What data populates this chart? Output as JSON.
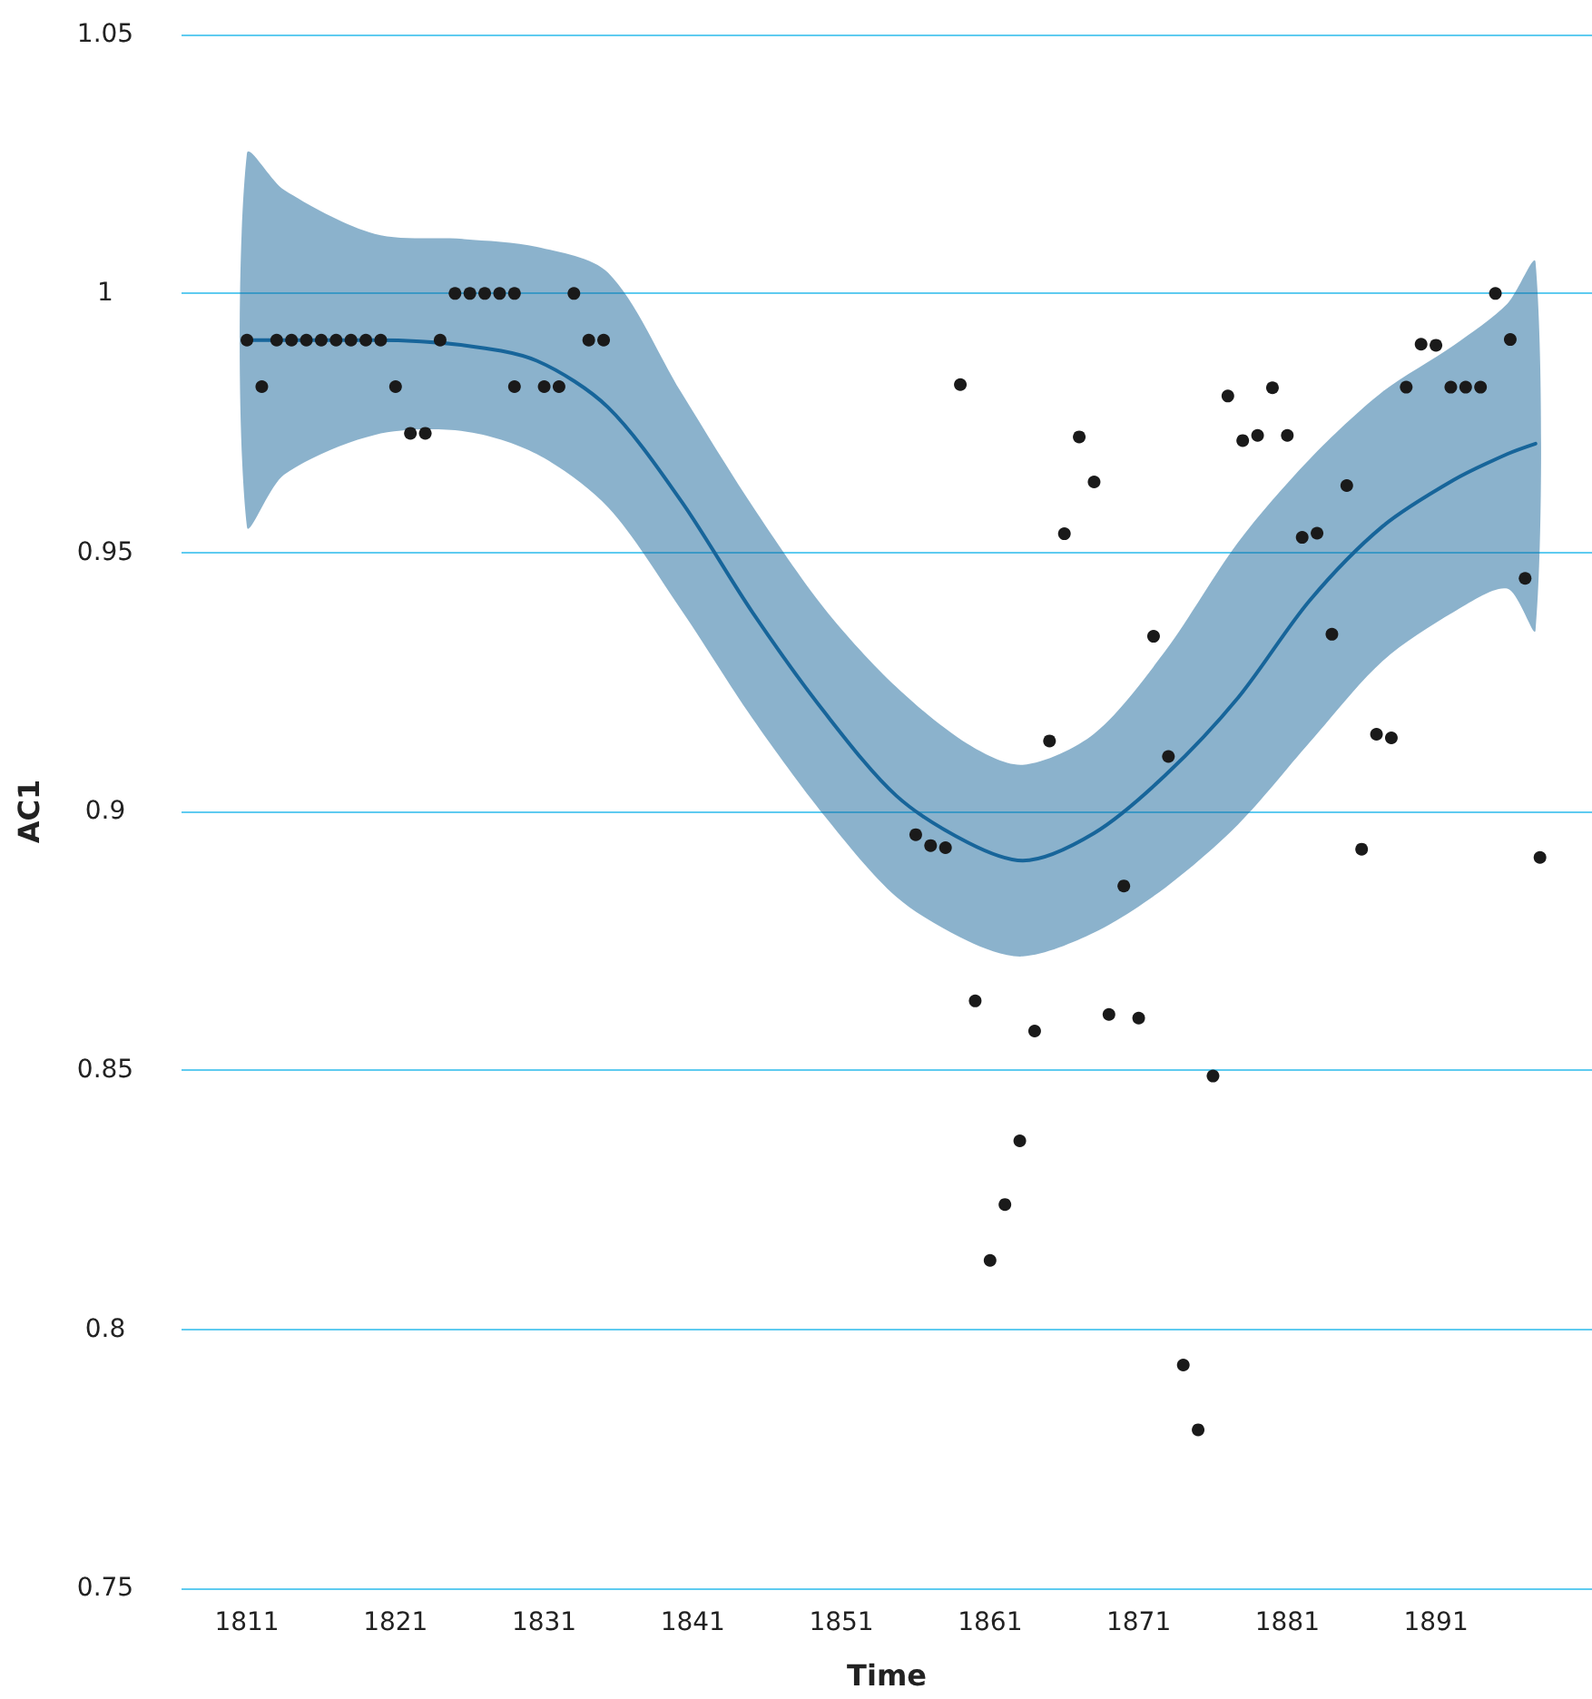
{
  "chart_data": {
    "type": "scatter",
    "xlabel": "Time",
    "ylabel": "AC1",
    "xlim": [
      1806.6,
      1901.5
    ],
    "xticks": [
      1811,
      1821,
      1831,
      1841,
      1851,
      1861,
      1871,
      1881,
      1891
    ],
    "ylim": [
      0.75,
      1.05
    ],
    "yticks": [
      0.75,
      0.8,
      0.85,
      0.9,
      0.95,
      1,
      1.05
    ],
    "grid": "y",
    "series": [
      {
        "type": "line",
        "color": "#17659a",
        "marker": "none",
        "line_style": "solid",
        "x": [
          1811,
          1813.5,
          1819.6,
          1825.6,
          1830.5,
          1835.3,
          1840.2,
          1845,
          1849.9,
          1854.7,
          1859.5,
          1863.2,
          1868,
          1872.8,
          1877.7,
          1882.5,
          1887.4,
          1892.2,
          1895.8,
          1897.7
        ],
        "values": [
          0.991,
          0.991,
          0.991,
          0.99,
          0.987,
          0.978,
          0.96,
          0.9385,
          0.919,
          0.903,
          0.894,
          0.8905,
          0.8958,
          0.907,
          0.922,
          0.9407,
          0.955,
          0.964,
          0.969,
          0.971
        ],
        "lower": [
          0.955,
          0.965,
          0.9727,
          0.9734,
          0.969,
          0.9587,
          0.939,
          0.918,
          0.899,
          0.8835,
          0.875,
          0.872,
          0.8766,
          0.8853,
          0.8975,
          0.9133,
          0.929,
          0.9385,
          0.943,
          0.935
        ],
        "upper": [
          1.027,
          1.02,
          1.0115,
          1.0105,
          1.009,
          1.004,
          0.981,
          0.959,
          0.939,
          0.924,
          0.913,
          0.909,
          0.915,
          0.931,
          0.952,
          0.968,
          0.981,
          0.99,
          0.998,
          1.006
        ]
      },
      {
        "color": "#1a1a1a",
        "marker": "circle",
        "x": [
          1811,
          1812,
          1813,
          1814,
          1815,
          1816,
          1817,
          1818,
          1819,
          1820,
          1821,
          1822,
          1823,
          1824,
          1825,
          1826,
          1827,
          1828,
          1829,
          1829,
          1831,
          1832,
          1833,
          1834,
          1835,
          1856,
          1857,
          1858,
          1859,
          1860,
          1861,
          1862,
          1863,
          1864,
          1865,
          1866,
          1867,
          1868,
          1869,
          1870,
          1871,
          1872,
          1873,
          1874,
          1875,
          1876,
          1877,
          1878,
          1879,
          1880,
          1881,
          1882,
          1883,
          1884,
          1885,
          1886,
          1887,
          1888,
          1889,
          1890,
          1891,
          1892,
          1893,
          1894,
          1895,
          1896,
          1897,
          1898
        ],
        "values": [
          0.991,
          0.982,
          0.991,
          0.991,
          0.991,
          0.991,
          0.991,
          0.991,
          0.991,
          0.991,
          0.982,
          0.973,
          0.973,
          0.991,
          1,
          1,
          1,
          1,
          1,
          0.982,
          0.982,
          0.982,
          1,
          0.991,
          0.991,
          0.8955,
          0.8934,
          0.893,
          0.9824,
          0.8634,
          0.8133,
          0.8241,
          0.8364,
          0.8576,
          0.9136,
          0.9536,
          0.9723,
          0.9636,
          0.8608,
          0.8856,
          0.8601,
          0.9338,
          0.9106,
          0.7931,
          0.7806,
          0.8489,
          0.9802,
          0.9716,
          0.9726,
          0.9818,
          0.9726,
          0.9529,
          0.9537,
          0.9342,
          0.9629,
          0.8927,
          0.9149,
          0.9142,
          0.9819,
          0.9902,
          0.99,
          0.9819,
          0.9819,
          0.9819,
          1,
          0.9911,
          0.945,
          0.8911
        ]
      }
    ]
  }
}
